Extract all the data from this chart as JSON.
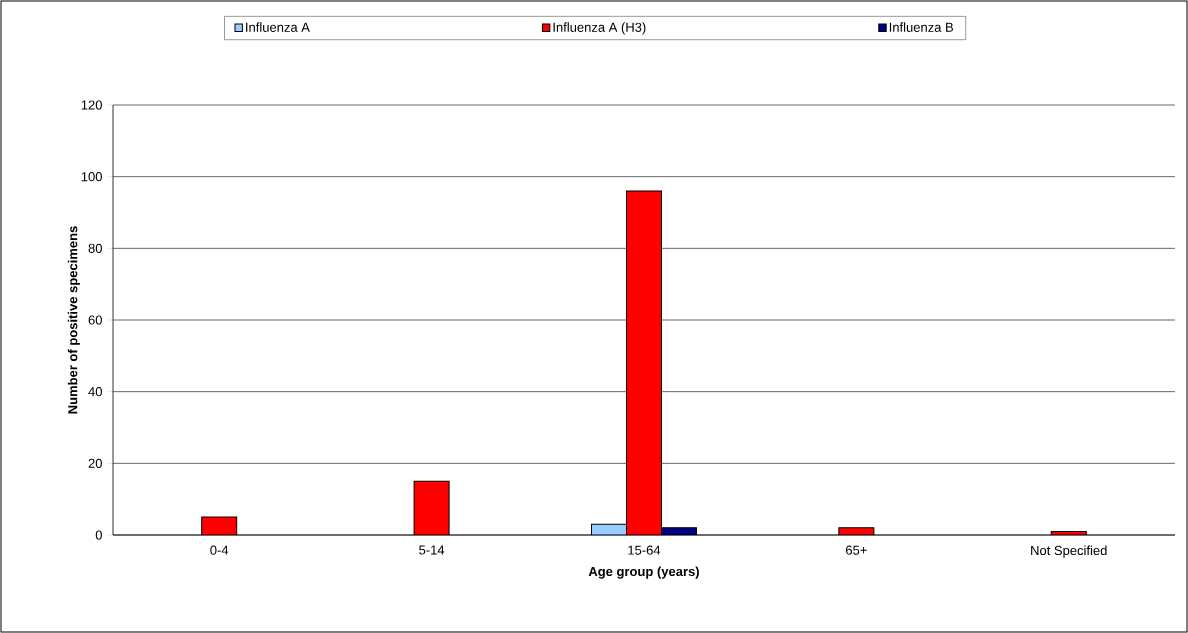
{
  "chart_data": {
    "type": "bar",
    "xlabel": "Age group (years)",
    "ylabel": "Number of positive specimens",
    "categories": [
      "0-4",
      "5-14",
      "15-64",
      "65+",
      "Not Specified"
    ],
    "series": [
      {
        "name": "Influenza A",
        "color": "#99ccff",
        "values": [
          null,
          null,
          3,
          null,
          null
        ]
      },
      {
        "name": "Influenza A (H3)",
        "color": "#ff0000",
        "values": [
          5,
          15,
          96,
          2,
          1
        ]
      },
      {
        "name": "Influenza B",
        "color": "#000080",
        "values": [
          null,
          null,
          2,
          null,
          null
        ]
      }
    ],
    "ylim": [
      0,
      120
    ],
    "yticks": [
      0,
      20,
      40,
      60,
      80,
      100,
      120
    ],
    "grid": "y",
    "legend": "top"
  }
}
